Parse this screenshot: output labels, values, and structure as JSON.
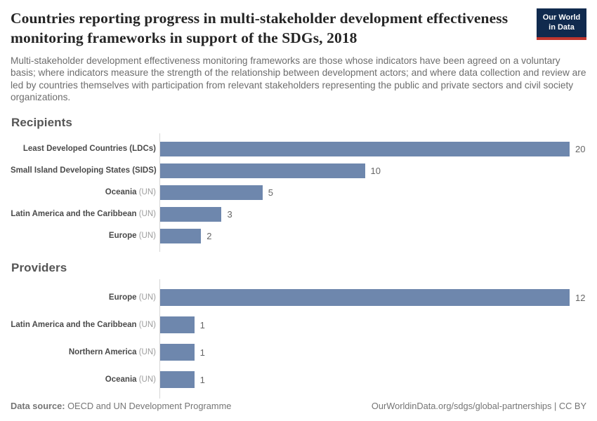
{
  "header": {
    "title": "Countries reporting progress in multi-stakeholder development effectiveness monitoring frameworks in support of the SDGs, 2018",
    "logo": {
      "line1": "Our World",
      "line2": "in Data"
    }
  },
  "subtitle": "Multi-stakeholder development effectiveness monitoring frameworks are those whose indicators have been agreed on a voluntary basis; where indicators measure the strength of the relationship between development actors; and where data collection and review are led by countries themselves with participation from relevant stakeholders representing the public and private sectors and civil society organizations.",
  "chart_data": [
    {
      "type": "bar",
      "orientation": "horizontal",
      "title": "Recipients",
      "categories": [
        {
          "name": "Least Developed Countries (LDCs)",
          "suffix": ""
        },
        {
          "name": "Small Island Developing States (SIDS)",
          "suffix": ""
        },
        {
          "name": "Oceania",
          "suffix": " (UN)"
        },
        {
          "name": "Latin America and the Caribbean",
          "suffix": " (UN)"
        },
        {
          "name": "Europe",
          "suffix": " (UN)"
        }
      ],
      "values": [
        20,
        10,
        5,
        3,
        2
      ],
      "xlim": [
        0,
        20
      ],
      "grid": false,
      "legend": false
    },
    {
      "type": "bar",
      "orientation": "horizontal",
      "title": "Providers",
      "categories": [
        {
          "name": "Europe",
          "suffix": " (UN)"
        },
        {
          "name": "Latin America and the Caribbean",
          "suffix": " (UN)"
        },
        {
          "name": "Northern America",
          "suffix": " (UN)"
        },
        {
          "name": "Oceania",
          "suffix": " (UN)"
        }
      ],
      "values": [
        12,
        1,
        1,
        1
      ],
      "xlim": [
        0,
        12
      ],
      "grid": false,
      "legend": false
    }
  ],
  "colors": {
    "bar": "#6e87ad",
    "axis": "#d6d6d6",
    "logo_navy": "#102a4e",
    "logo_red": "#c0362e",
    "title_text": "#252525",
    "subtitle_text": "#6d6d6d"
  },
  "footer": {
    "source_label": "Data source:",
    "source_value": " OECD and UN Development Programme",
    "citation": "OurWorldinData.org/sdgs/global-partnerships | CC BY"
  }
}
